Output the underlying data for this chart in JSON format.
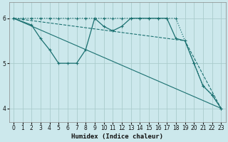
{
  "background_color": "#cce8ec",
  "grid_color": "#aacccc",
  "line_color": "#1a7070",
  "xlabel": "Humidex (Indice chaleur)",
  "xlim": [
    -0.5,
    23.5
  ],
  "ylim": [
    3.7,
    6.35
  ],
  "yticks": [
    4,
    5,
    6
  ],
  "xticks": [
    0,
    1,
    2,
    3,
    4,
    5,
    6,
    7,
    8,
    9,
    10,
    11,
    12,
    13,
    14,
    15,
    16,
    17,
    18,
    19,
    20,
    21,
    22,
    23
  ],
  "series": [
    {
      "x": [
        0,
        1,
        2,
        3,
        4,
        5,
        6,
        7,
        8,
        9,
        10,
        11,
        12,
        13,
        14,
        15,
        16,
        17,
        18,
        20,
        21,
        22,
        23
      ],
      "y": [
        6.0,
        6.0,
        6.0,
        6.0,
        6.0,
        6.0,
        6.0,
        6.0,
        6.0,
        6.0,
        6.0,
        6.0,
        6.0,
        6.0,
        6.0,
        6.0,
        6.0,
        6.0,
        6.0,
        5.0,
        4.5,
        4.3,
        4.0
      ],
      "linestyle": "dotted",
      "linewidth": 0.9,
      "marker": "+"
    },
    {
      "x": [
        0,
        23
      ],
      "y": [
        6.0,
        4.0
      ],
      "linestyle": "solid",
      "linewidth": 0.8,
      "marker": null
    },
    {
      "x": [
        0,
        19,
        23
      ],
      "y": [
        6.0,
        5.5,
        4.0
      ],
      "linestyle": "dashed",
      "linewidth": 0.8,
      "marker": null
    },
    {
      "x": [
        0,
        2,
        3,
        4,
        5,
        6,
        7,
        8,
        9,
        10,
        11,
        12,
        13,
        14,
        15,
        16,
        17,
        18,
        19,
        20,
        21,
        22,
        23
      ],
      "y": [
        6.0,
        5.85,
        5.55,
        5.3,
        5.0,
        5.0,
        5.0,
        5.3,
        6.0,
        5.82,
        5.72,
        5.82,
        6.0,
        6.0,
        6.0,
        6.0,
        6.0,
        5.55,
        5.5,
        5.0,
        4.5,
        4.3,
        4.0
      ],
      "linestyle": "solid",
      "linewidth": 0.9,
      "marker": "+"
    }
  ]
}
